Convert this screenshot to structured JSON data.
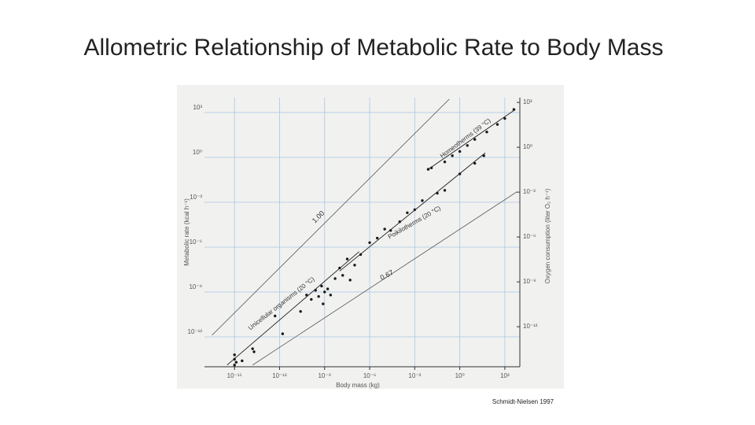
{
  "title": "Allometric Relationship of Metabolic Rate to Body Mass",
  "credit": "Schmidt-Nielsen 1997",
  "chart_data": {
    "type": "scatter",
    "x_log": true,
    "y_log": true,
    "grid": true,
    "grid_color": "#a9c6e8",
    "xlabel": "Body mass (kg)",
    "ylabel": "Metabolic rate (kcal h⁻¹)",
    "y2label": "Oxygen consumption (liter O₂ h⁻¹)",
    "xlim": [
      1e-17,
      10000
    ],
    "ylim": [
      1e-14,
      10000
    ],
    "y2lim": [
      2.1e-15,
      2100
    ],
    "xticks": [
      {
        "value": 1e-15,
        "label": "10⁻¹⁵"
      },
      {
        "value": 1e-12,
        "label": "10⁻¹²"
      },
      {
        "value": 1e-09,
        "label": "10⁻⁹"
      },
      {
        "value": 1e-06,
        "label": "10⁻⁶"
      },
      {
        "value": 0.001,
        "label": "10⁻³"
      },
      {
        "value": 1,
        "label": "10⁰"
      },
      {
        "value": 1000,
        "label": "10³"
      }
    ],
    "yticks": [
      {
        "value": 1e-12,
        "label": "10⁻¹²"
      },
      {
        "value": 1e-09,
        "label": "10⁻⁹"
      },
      {
        "value": 1e-06,
        "label": "10⁻⁶"
      },
      {
        "value": 0.001,
        "label": "10⁻³"
      },
      {
        "value": 1,
        "label": "10⁰"
      },
      {
        "value": 1000,
        "label": "10³"
      }
    ],
    "y2ticks": [
      {
        "value": 1e-12,
        "label": "10⁻¹²"
      },
      {
        "value": 1e-09,
        "label": "10⁻⁹"
      },
      {
        "value": 1e-06,
        "label": "10⁻⁶"
      },
      {
        "value": 0.001,
        "label": "10⁻³"
      },
      {
        "value": 1,
        "label": "10⁰"
      },
      {
        "value": 1000,
        "label": "10³"
      }
    ],
    "series": [
      {
        "name": "Unicellular organisms (20 °C)",
        "color": "#1a1a1a",
        "x": [
          1e-15,
          1e-15,
          1e-15,
          1.3e-15,
          3.2e-15,
          1.6e-14,
          2e-14,
          5e-13,
          1.6e-12,
          2.5e-11,
          6.3e-11,
          1.3e-10,
          2.5e-10,
          4e-10,
          6.3e-10,
          1e-09,
          1.6e-09,
          2.5e-09,
          5e-09,
          7.9e-10,
          1.6e-08,
          5e-08
        ],
        "values": [
          6.3e-14,
          3.2e-14,
          1.3e-14,
          2e-14,
          2.5e-14,
          1.6e-13,
          1e-13,
          2.5e-11,
          1.6e-12,
          5e-11,
          6.3e-10,
          3.2e-10,
          1.3e-09,
          5e-10,
          2.5e-09,
          1e-09,
          1.6e-09,
          6.3e-10,
          7.9e-09,
          1.6e-10,
          1.3e-08,
          6.3e-09
        ],
        "fit": {
          "x": [
            3.2e-16,
            2e-07
          ],
          "values": [
            1.3e-14,
            5e-07
          ]
        }
      },
      {
        "name": "Poikilotherms (20 °C)",
        "color": "#1a1a1a",
        "x": [
          1e-08,
          3.2e-08,
          1e-07,
          2.5e-07,
          1e-06,
          3.2e-06,
          1e-05,
          2.5e-05,
          0.0001,
          0.00032,
          0.001,
          0.0032,
          0.032,
          0.1,
          1,
          10,
          40
        ],
        "values": [
          4e-08,
          1.6e-07,
          6.3e-08,
          3.2e-07,
          2e-06,
          4e-06,
          1.6e-05,
          1.3e-05,
          5e-05,
          0.0002,
          0.00032,
          0.0013,
          0.004,
          0.0063,
          0.079,
          0.4,
          1.3
        ],
        "fit": {
          "x": [
            1e-08,
            50
          ],
          "values": [
            2.5e-08,
            2
          ]
        }
      },
      {
        "name": "Homeotherms (39 °C)",
        "color": "#1a1a1a",
        "x": [
          0.0079,
          0.013,
          0.1,
          0.32,
          1,
          3.2,
          10,
          63,
          320,
          1000,
          4000
        ],
        "values": [
          0.16,
          0.2,
          0.5,
          1.3,
          2.5,
          6.3,
          16,
          50,
          160,
          400,
          1600
        ],
        "fit": {
          "x": [
            0.0079,
            5000
          ],
          "values": [
            0.16,
            1600
          ]
        }
      }
    ],
    "reference_lines": [
      {
        "label": "1.00",
        "x": [
          3.2e-17,
          0.2
        ],
        "values": [
          1.3e-12,
          7900
        ]
      },
      {
        "label": "0.67",
        "x": [
          1.6e-14,
          6300
        ],
        "values": [
          1.3e-14,
          0.005
        ]
      }
    ]
  }
}
